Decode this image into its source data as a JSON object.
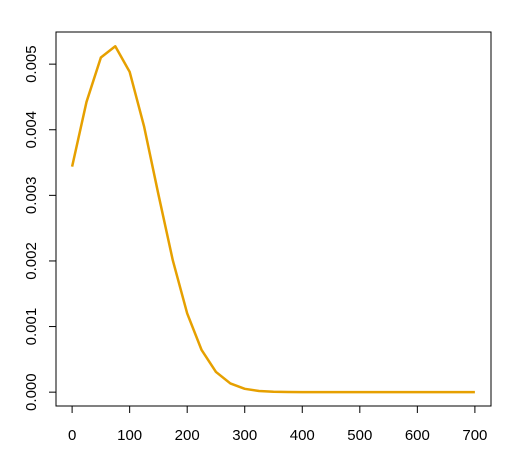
{
  "chart_data": {
    "type": "line",
    "x": [
      0,
      25,
      50,
      75,
      100,
      125,
      150,
      175,
      200,
      225,
      250,
      275,
      300,
      325,
      350,
      375,
      400,
      500,
      600,
      700
    ],
    "series": [
      {
        "color": "#e6a000",
        "values": [
          0.003438,
          0.004424,
          0.005102,
          0.005272,
          0.004883,
          0.004053,
          0.003014,
          0.002009,
          0.0012,
          0.000643,
          0.000308,
          0.000133,
          5.11e-05,
          1.76e-05,
          5.4e-06,
          1.5e-06,
          4e-07,
          0,
          0,
          0
        ]
      }
    ],
    "xlim": [
      -28,
      728
    ],
    "ylim": [
      -0.000211,
      0.00549
    ],
    "xticks": [
      0,
      100,
      200,
      300,
      400,
      500,
      600,
      700
    ],
    "yticks": [
      {
        "value": 0,
        "label": "0.000"
      },
      {
        "value": 0.001,
        "label": "0.001"
      },
      {
        "value": 0.002,
        "label": "0.002"
      },
      {
        "value": 0.003,
        "label": "0.003"
      },
      {
        "value": 0.004,
        "label": "0.004"
      },
      {
        "value": 0.005,
        "label": "0.005"
      }
    ]
  }
}
